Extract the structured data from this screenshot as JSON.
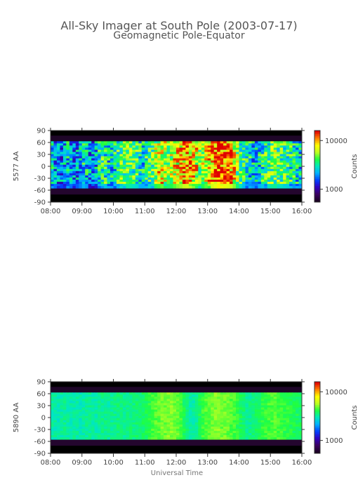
{
  "title": "All-Sky Imager at South Pole (2003-07-17)",
  "subtitle": "Geomagnetic Pole-Equator",
  "xlabel": "Universal Time",
  "colors": {
    "colormap": [
      "#1a0022",
      "#3a0060",
      "#3000c0",
      "#0040ff",
      "#00b0ff",
      "#00e8c0",
      "#20ff40",
      "#c0ff20",
      "#ffff00",
      "#ff8000",
      "#e00000"
    ],
    "background": "#000000"
  },
  "chart_data": [
    {
      "type": "heatmap",
      "ylabel": "5577 AA",
      "x_ticks": [
        "08:00",
        "09:00",
        "10:00",
        "11:00",
        "12:00",
        "13:00",
        "14:00",
        "15:00",
        "16:00"
      ],
      "y_ticks": [
        90,
        60,
        30,
        0,
        -30,
        -60,
        -90
      ],
      "ylim": [
        -90,
        90
      ],
      "x_range": [
        "08:00",
        "16:00"
      ],
      "data_lat_range": [
        -55,
        63
      ],
      "colorbar": {
        "label": "Counts",
        "ticks": [
          "10000",
          "1000"
        ],
        "scale": "log"
      },
      "profile": [
        0.45,
        0.4,
        0.38,
        0.35,
        0.42,
        0.45,
        0.4,
        0.36,
        0.38,
        0.42,
        0.48,
        0.45,
        0.4,
        0.38,
        0.42,
        0.5,
        0.55,
        0.52,
        0.48,
        0.46,
        0.5,
        0.55,
        0.58,
        0.6,
        0.62,
        0.6,
        0.58,
        0.56,
        0.52,
        0.48,
        0.52,
        0.56,
        0.6,
        0.68,
        0.72,
        0.75,
        0.7,
        0.66,
        0.7,
        0.74,
        0.78,
        0.8,
        0.84,
        0.86,
        0.82,
        0.78,
        0.72,
        0.68,
        0.7,
        0.74,
        0.8,
        0.86,
        0.9,
        0.95,
        0.92,
        0.9,
        0.88,
        0.84,
        0.78,
        0.66,
        0.58,
        0.52,
        0.5,
        0.48,
        0.45,
        0.42,
        0.48,
        0.52,
        0.55,
        0.58,
        0.62,
        0.64,
        0.6,
        0.58,
        0.56,
        0.54,
        0.52,
        0.5,
        0.48,
        0.46
      ]
    },
    {
      "type": "heatmap",
      "ylabel": "5890 AA",
      "x_ticks": [
        "08:00",
        "09:00",
        "10:00",
        "11:00",
        "12:00",
        "13:00",
        "14:00",
        "15:00",
        "16:00"
      ],
      "y_ticks": [
        90,
        60,
        30,
        0,
        -30,
        -60,
        -90
      ],
      "ylim": [
        -90,
        90
      ],
      "x_range": [
        "08:00",
        "16:00"
      ],
      "data_lat_range": [
        -55,
        63
      ],
      "colorbar": {
        "label": "Counts",
        "ticks": [
          "10000",
          "1000"
        ],
        "scale": "log"
      },
      "profile": [
        0.52,
        0.52,
        0.51,
        0.52,
        0.53,
        0.52,
        0.51,
        0.52,
        0.52,
        0.51,
        0.52,
        0.53,
        0.53,
        0.52,
        0.52,
        0.53,
        0.54,
        0.54,
        0.53,
        0.53,
        0.54,
        0.55,
        0.55,
        0.54,
        0.54,
        0.55,
        0.55,
        0.56,
        0.56,
        0.57,
        0.58,
        0.6,
        0.62,
        0.63,
        0.64,
        0.65,
        0.65,
        0.66,
        0.66,
        0.65,
        0.64,
        0.62,
        0.58,
        0.55,
        0.52,
        0.52,
        0.54,
        0.58,
        0.61,
        0.63,
        0.64,
        0.65,
        0.66,
        0.66,
        0.65,
        0.65,
        0.64,
        0.63,
        0.62,
        0.6,
        0.58,
        0.56,
        0.54,
        0.54,
        0.55,
        0.57,
        0.58,
        0.6,
        0.61,
        0.62,
        0.62,
        0.63,
        0.62,
        0.61,
        0.6,
        0.6,
        0.59,
        0.58,
        0.58,
        0.57
      ]
    }
  ]
}
